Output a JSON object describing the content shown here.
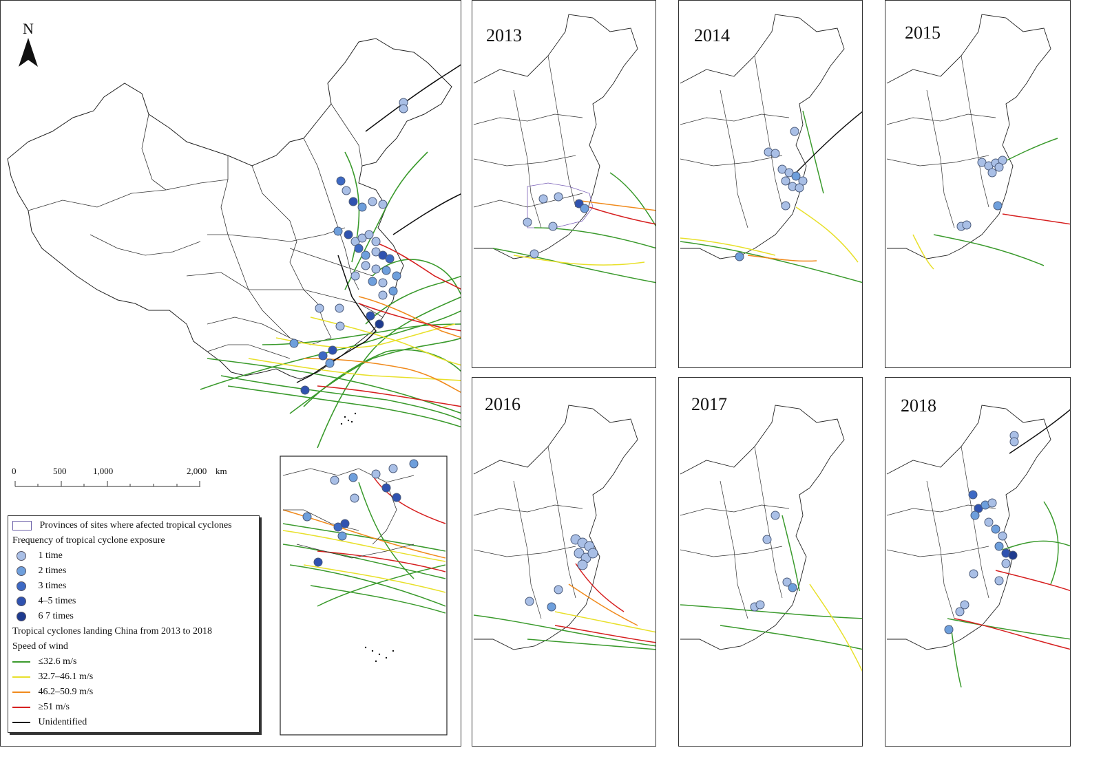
{
  "north_arrow": {
    "label": "N"
  },
  "scale_bar": {
    "ticks": [
      "0",
      "500",
      "1,000",
      "2,000"
    ],
    "unit": "km"
  },
  "panels": [
    {
      "year": "2013"
    },
    {
      "year": "2014"
    },
    {
      "year": "2015"
    },
    {
      "year": "2016"
    },
    {
      "year": "2017"
    },
    {
      "year": "2018"
    }
  ],
  "legend": {
    "provinces": "Provinces of sites where afected tropical cyclones",
    "frequency_title": "Frequency of tropical cyclone exposure",
    "frequency_items": [
      {
        "label": "1 time",
        "color": "#a9bfe6"
      },
      {
        "label": "2 times",
        "color": "#6e9fdc"
      },
      {
        "label": "3 times",
        "color": "#3d69c4"
      },
      {
        "label": "4–5 times",
        "color": "#2f52b0"
      },
      {
        "label": "6  7 times",
        "color": "#1e3b8f"
      }
    ],
    "tracks_title": "Tropical cyclones landing China from 2013 to 2018",
    "speed_title": "Speed of wind",
    "speed_items": [
      {
        "label": "≤32.6 m/s",
        "color": "#3a9a2c"
      },
      {
        "label": "32.7–46.1 m/s",
        "color": "#e8e02a"
      },
      {
        "label": "46.2–50.9 m/s",
        "color": "#f08a1c"
      },
      {
        "label": "≥51 m/s",
        "color": "#d62020"
      },
      {
        "label": "Unidentified",
        "color": "#111111"
      }
    ]
  }
}
